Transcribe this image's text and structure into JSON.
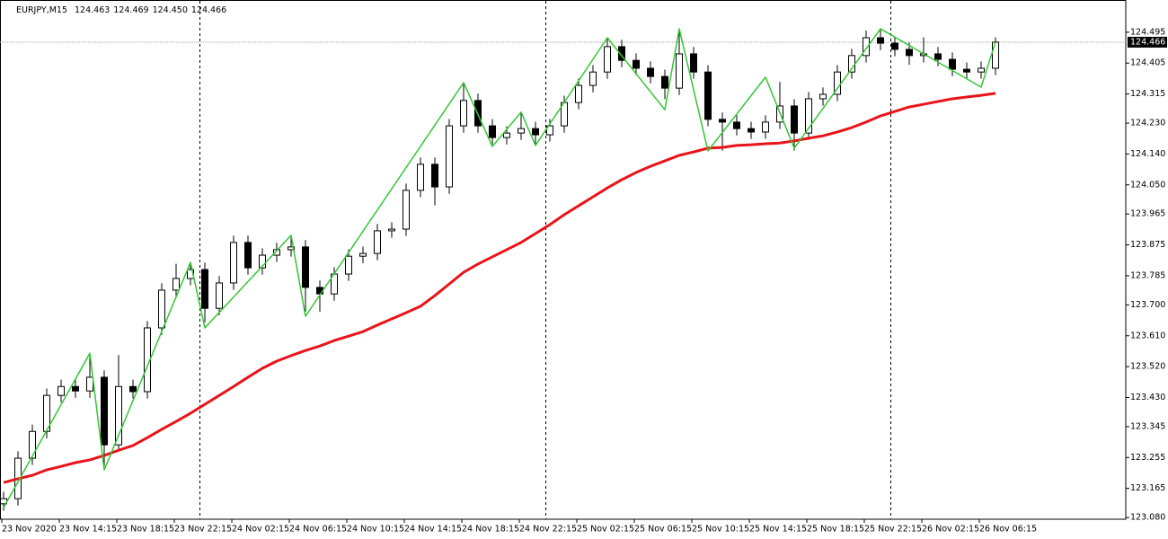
{
  "chart_data": {
    "type": "candlestick",
    "quote": {
      "name": "EURJPY,M15",
      "values": [
        124.463,
        124.469,
        124.45,
        124.466
      ],
      "value_labels": [
        "124.463",
        "124.469",
        "124.450",
        "124.466"
      ]
    },
    "current_price": 124.466,
    "categories": [
      "23 Nov 2020",
      null,
      null,
      null,
      "23 Nov 14:15",
      null,
      null,
      null,
      "23 Nov 18:15",
      null,
      null,
      null,
      "23 Nov 22:15",
      null,
      null,
      null,
      "24 Nov 02:15",
      null,
      null,
      null,
      "24 Nov 06:15",
      null,
      null,
      null,
      "24 Nov 10:15",
      null,
      null,
      null,
      "24 Nov 14:15",
      null,
      null,
      null,
      "24 Nov 18:15",
      null,
      null,
      null,
      "24 Nov 22:15",
      null,
      null,
      null,
      "25 Nov 02:15",
      null,
      null,
      null,
      "25 Nov 06:15",
      null,
      null,
      null,
      "25 Nov 10:15",
      null,
      null,
      null,
      "25 Nov 14:15",
      null,
      null,
      null,
      "25 Nov 18:15",
      null,
      null,
      null,
      "25 Nov 22:15",
      null,
      null,
      null,
      "26 Nov 02:15",
      null,
      null,
      null,
      "26 Nov 06:15",
      null
    ],
    "open": [
      123.12,
      123.135,
      123.253,
      123.331,
      123.436,
      123.462,
      123.449,
      123.489,
      123.292,
      123.462,
      123.447,
      123.633,
      123.743,
      123.777,
      123.803,
      123.69,
      123.764,
      123.882,
      123.808,
      123.845,
      123.861,
      123.869,
      123.751,
      123.732,
      123.79,
      123.842,
      123.85,
      123.916,
      123.921,
      124.034,
      124.11,
      124.044,
      124.222,
      124.296,
      124.222,
      124.188,
      124.201,
      124.214,
      124.196,
      124.222,
      124.29,
      124.34,
      124.379,
      124.453,
      124.413,
      124.39,
      124.366,
      124.332,
      124.432,
      124.379,
      124.241,
      124.233,
      124.214,
      124.204,
      124.233,
      124.28,
      124.201,
      124.301,
      124.314,
      124.379,
      124.427,
      124.479,
      124.463,
      124.445,
      124.427,
      124.432,
      124.416,
      124.387,
      124.379,
      124.39
    ],
    "high": [
      123.155,
      123.273,
      123.351,
      123.456,
      123.482,
      123.482,
      123.559,
      123.509,
      123.554,
      123.482,
      123.653,
      123.763,
      123.82,
      123.823,
      123.823,
      123.784,
      123.902,
      123.902,
      123.865,
      123.881,
      123.9,
      123.889,
      123.771,
      123.81,
      123.862,
      123.87,
      123.936,
      123.941,
      124.054,
      124.13,
      124.13,
      124.242,
      124.35,
      124.316,
      124.242,
      124.221,
      124.26,
      124.234,
      124.242,
      124.31,
      124.36,
      124.399,
      124.48,
      124.473,
      124.433,
      124.41,
      124.386,
      124.505,
      124.452,
      124.399,
      124.261,
      124.253,
      124.234,
      124.253,
      124.35,
      124.3,
      124.321,
      124.334,
      124.399,
      124.447,
      124.5,
      124.505,
      124.483,
      124.465,
      124.48,
      124.452,
      124.436,
      124.407,
      124.41,
      124.48
    ],
    "low": [
      123.1,
      123.115,
      123.233,
      123.311,
      123.416,
      123.429,
      123.429,
      123.23,
      123.272,
      123.427,
      123.427,
      123.613,
      123.723,
      123.757,
      123.65,
      123.67,
      123.744,
      123.788,
      123.788,
      123.825,
      123.841,
      123.68,
      123.68,
      123.712,
      123.77,
      123.822,
      123.83,
      123.896,
      123.901,
      124.014,
      123.99,
      124.024,
      124.202,
      124.202,
      124.168,
      124.168,
      124.181,
      124.17,
      124.176,
      124.202,
      124.27,
      124.32,
      124.359,
      124.393,
      124.37,
      124.346,
      124.3,
      124.312,
      124.359,
      124.221,
      124.15,
      124.194,
      124.184,
      124.184,
      124.213,
      124.15,
      124.181,
      124.281,
      124.294,
      124.359,
      124.407,
      124.443,
      124.425,
      124.4,
      124.407,
      124.396,
      124.367,
      124.359,
      124.359,
      124.37
    ],
    "close": [
      123.135,
      123.253,
      123.331,
      123.436,
      123.462,
      123.449,
      123.489,
      123.292,
      123.462,
      123.447,
      123.633,
      123.743,
      123.777,
      123.803,
      123.69,
      123.764,
      123.882,
      123.808,
      123.845,
      123.861,
      123.869,
      123.751,
      123.732,
      123.79,
      123.842,
      123.85,
      123.916,
      123.921,
      124.034,
      124.11,
      124.044,
      124.222,
      124.296,
      124.222,
      124.188,
      124.201,
      124.214,
      124.196,
      124.222,
      124.29,
      124.34,
      124.379,
      124.453,
      124.413,
      124.39,
      124.366,
      124.332,
      124.432,
      124.379,
      124.241,
      124.233,
      124.214,
      124.204,
      124.233,
      124.28,
      124.201,
      124.301,
      124.314,
      124.379,
      124.427,
      124.479,
      124.463,
      124.445,
      124.427,
      124.432,
      124.416,
      124.387,
      124.379,
      124.39,
      124.466
    ],
    "overlays": [
      {
        "color": "#e8141a",
        "values": [
          123.182,
          123.193,
          123.203,
          123.219,
          123.229,
          123.24,
          123.248,
          123.261,
          123.276,
          123.29,
          123.313,
          123.337,
          123.36,
          123.384,
          123.41,
          123.436,
          123.462,
          123.489,
          123.515,
          123.536,
          123.552,
          123.567,
          123.58,
          123.596,
          123.609,
          123.622,
          123.641,
          123.659,
          123.677,
          123.696,
          123.727,
          123.761,
          123.795,
          123.819,
          123.84,
          123.861,
          123.882,
          123.908,
          123.934,
          123.963,
          123.989,
          124.015,
          124.041,
          124.065,
          124.086,
          124.104,
          124.12,
          124.136,
          124.146,
          124.157,
          124.159,
          124.165,
          124.167,
          124.17,
          124.172,
          124.178,
          124.186,
          124.193,
          124.204,
          124.217,
          124.233,
          124.251,
          124.264,
          124.277,
          124.285,
          124.293,
          124.301,
          124.306,
          124.311,
          124.317
        ]
      },
      {
        "color": "#33c733",
        "x": [
          0,
          6,
          7,
          13,
          14,
          20,
          21,
          32,
          34,
          36,
          37,
          42,
          46,
          47,
          49,
          53,
          55,
          61,
          68,
          69
        ],
        "values": [
          123.109,
          123.559,
          123.219,
          123.824,
          123.633,
          123.903,
          123.667,
          124.348,
          124.162,
          124.262,
          124.165,
          124.479,
          124.269,
          124.505,
          124.149,
          124.364,
          124.157,
          124.505,
          124.335,
          124.466
        ]
      }
    ],
    "ylim": [
      123.075,
      124.589
    ],
    "yticks": [
      124.495,
      124.405,
      124.315,
      {
        "value": 124.23,
        "label": "124.230"
      },
      {
        "value": 124.14,
        "label": "124.140"
      },
      {
        "value": 124.05,
        "label": "124.050"
      },
      123.965,
      123.875,
      123.785,
      {
        "value": 123.7,
        "label": "123.700"
      },
      {
        "value": 123.61,
        "label": "123.610"
      },
      {
        "value": 123.52,
        "label": "123.520"
      },
      {
        "value": 123.43,
        "label": "123.430"
      },
      123.345,
      123.255,
      123.165,
      {
        "value": 123.08,
        "label": "123.080"
      }
    ],
    "grid": false
  }
}
